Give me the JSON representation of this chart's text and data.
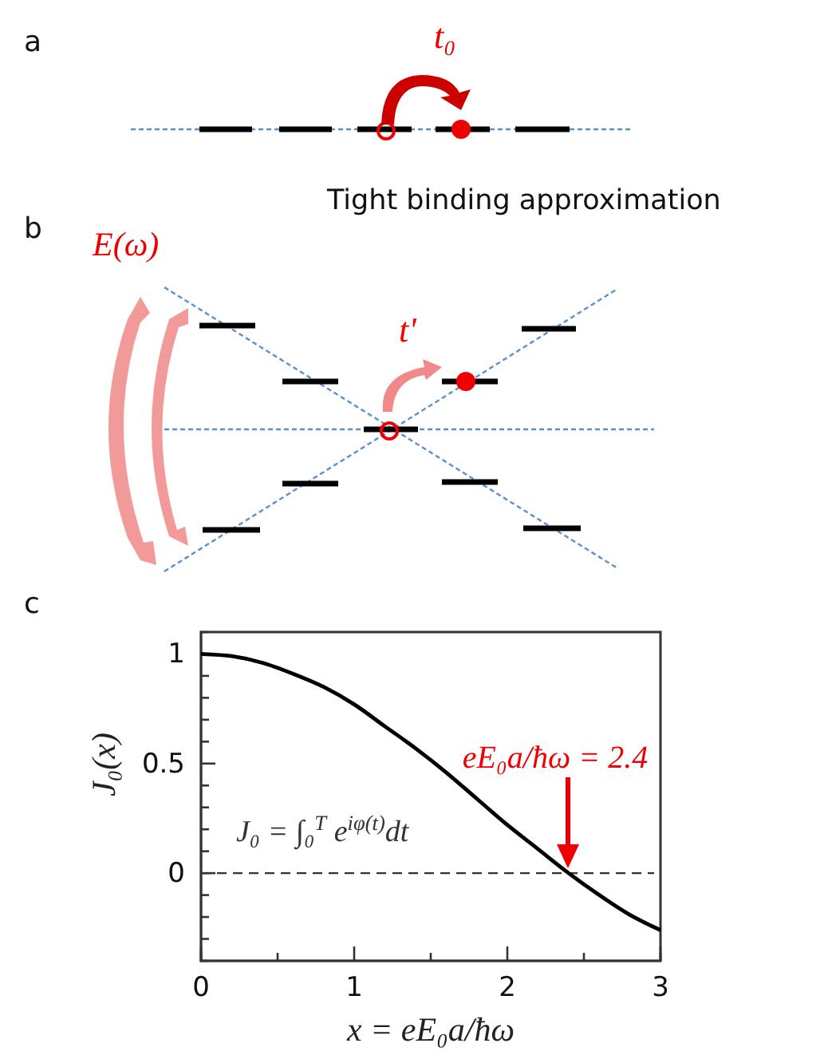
{
  "chart_data": {
    "type": "line",
    "xlabel": "x = eE₀a/ħω",
    "ylabel": "J₀(x)",
    "xlim": [
      0,
      3
    ],
    "ylim": [
      -0.4,
      1.1
    ],
    "xticks": [
      0,
      {
        "value": 0.5,
        "label": null
      },
      1,
      {
        "value": 1.5,
        "label": null
      },
      2,
      {
        "value": 2.5,
        "label": null
      },
      3
    ],
    "yticks": [
      {
        "value": -0.3,
        "label": null
      },
      {
        "value": -0.2,
        "label": null
      },
      {
        "value": -0.1,
        "label": null
      },
      0,
      {
        "value": 0.1,
        "label": null
      },
      {
        "value": 0.2,
        "label": null
      },
      {
        "value": 0.3,
        "label": null
      },
      {
        "value": 0.4,
        "label": null
      },
      0.5,
      {
        "value": 0.6,
        "label": null
      },
      {
        "value": 0.7,
        "label": null
      },
      {
        "value": 0.8,
        "label": null
      },
      {
        "value": 0.9,
        "label": null
      },
      1
    ],
    "series": [
      {
        "color": "#000000",
        "x": [
          0,
          0.2,
          0.4,
          0.6,
          0.8,
          1.0,
          1.2,
          1.4,
          1.6,
          1.8,
          2.0,
          2.2,
          2.4,
          2.6,
          2.8,
          3.0
        ],
        "values": [
          1.0,
          0.99,
          0.96,
          0.91,
          0.85,
          0.77,
          0.67,
          0.57,
          0.46,
          0.34,
          0.22,
          0.11,
          0.0,
          -0.1,
          -0.19,
          -0.26
        ]
      }
    ],
    "ref_lines": [
      {
        "axis": "y",
        "value": 0,
        "line_style": "dashed",
        "color": "#333333"
      }
    ],
    "annotations": [
      "a",
      "t₀",
      "Tight binding approximation",
      "b",
      "E(ω)",
      "t'",
      "c",
      "J₀ = ∫₀$^{T}$ e$^{iφ(t)}$dt",
      "eE₀a/ħω = 2.4"
    ]
  }
}
